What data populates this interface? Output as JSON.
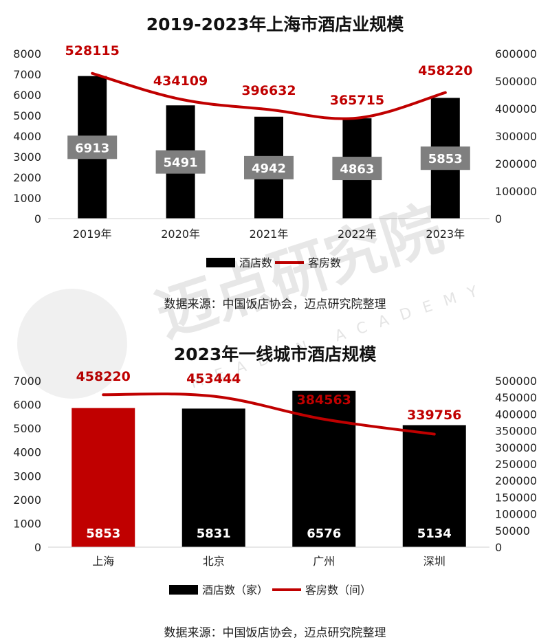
{
  "chart_data": [
    {
      "type": "bar",
      "title": "2019-2023年上海市酒店业规模",
      "categories": [
        "2019年",
        "2020年",
        "2021年",
        "2022年",
        "2023年"
      ],
      "series": [
        {
          "name": "酒店数",
          "type": "bar",
          "axis": "left",
          "values": [
            6913,
            5491,
            4942,
            4863,
            5853
          ],
          "color": "#000000"
        },
        {
          "name": "客房数",
          "type": "line",
          "axis": "right",
          "values": [
            528115,
            434109,
            396632,
            365715,
            458220
          ],
          "color": "#c00000"
        }
      ],
      "ylim_left": [
        0,
        8000
      ],
      "ylim_right": [
        0,
        600000
      ],
      "yticks_left": [
        "0",
        "1000",
        "2000",
        "3000",
        "4000",
        "5000",
        "6000",
        "7000",
        "8000"
      ],
      "yticks_right": [
        "0",
        "100000",
        "200000",
        "300000",
        "400000",
        "500000",
        "600000"
      ],
      "legend_position": "bottom",
      "source": "数据来源：中国饭店协会，迈点研究院整理"
    },
    {
      "type": "bar",
      "title": "2023年一线城市酒店规模",
      "categories": [
        "上海",
        "北京",
        "广州",
        "深圳"
      ],
      "series": [
        {
          "name": "酒店数（家）",
          "type": "bar",
          "axis": "left",
          "values": [
            5853,
            5831,
            6576,
            5134
          ],
          "colors": [
            "#c00000",
            "#000000",
            "#000000",
            "#000000"
          ]
        },
        {
          "name": "客房数（间）",
          "type": "line",
          "axis": "right",
          "values": [
            458220,
            453444,
            384563,
            339756
          ],
          "color": "#c00000"
        }
      ],
      "ylim_left": [
        0,
        7000
      ],
      "ylim_right": [
        0,
        500000
      ],
      "yticks_left": [
        "0",
        "1000",
        "2000",
        "3000",
        "4000",
        "5000",
        "6000",
        "7000"
      ],
      "yticks_right": [
        "0",
        "50000",
        "100000",
        "150000",
        "200000",
        "250000",
        "300000",
        "350000",
        "400000",
        "450000",
        "500000"
      ],
      "legend_position": "bottom",
      "source": "数据来源：中国饭店协会，迈点研究院整理"
    }
  ],
  "watermark": {
    "text": "迈点研究院",
    "subtext": "MEADIN ACADEMY"
  }
}
